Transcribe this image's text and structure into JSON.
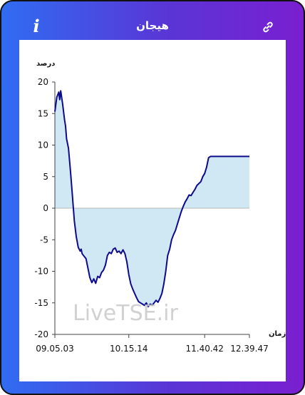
{
  "header": {
    "title": "هیجان",
    "info_label": "i",
    "info_icon": "info-icon",
    "link_icon": "link-icon"
  },
  "colors": {
    "gradient_start": "#2f6df2",
    "gradient_end": "#7a1fd0",
    "line": "#0d0a8c",
    "fill": "#cfe8f4"
  },
  "watermark": "LiveTSE.ir",
  "chart_data": {
    "type": "area",
    "xlabel": "زمان",
    "ylabel": "درصد",
    "ylim": [
      -20,
      20
    ],
    "yticks": [
      20,
      15,
      10,
      5,
      0,
      -5,
      -10,
      -15,
      -20
    ],
    "xticks": [
      "09.05.03",
      "10.15.14",
      "11.40.42",
      "12.39.47"
    ],
    "grid": false,
    "series": [
      {
        "x": [
          0,
          0.01,
          0.02,
          0.025,
          0.03,
          0.04,
          0.05,
          0.055,
          0.06,
          0.07,
          0.08,
          0.09,
          0.1,
          0.11,
          0.12,
          0.13,
          0.135,
          0.14,
          0.15,
          0.16,
          0.17,
          0.18,
          0.19,
          0.2,
          0.21,
          0.22,
          0.23,
          0.24,
          0.25,
          0.26,
          0.27,
          0.28,
          0.29,
          0.3,
          0.31,
          0.32,
          0.33,
          0.34,
          0.35,
          0.36,
          0.37,
          0.38,
          0.39,
          0.4,
          0.41,
          0.42,
          0.43,
          0.44,
          0.45,
          0.46,
          0.47,
          0.48,
          0.49,
          0.5,
          0.51,
          0.52,
          0.53,
          0.54,
          0.55,
          0.56,
          0.57,
          0.58,
          0.59,
          0.6,
          0.61,
          0.62,
          0.63,
          0.64,
          0.65,
          0.66,
          0.67,
          0.68,
          0.69,
          0.7,
          0.71,
          0.72,
          0.73,
          0.74,
          0.75,
          0.76,
          0.77,
          0.78,
          0.79,
          0.8,
          0.81,
          0.82,
          0.83,
          0.84,
          0.85,
          0.86,
          0.87,
          0.88,
          0.89,
          0.9,
          0.91,
          0.92,
          0.93,
          0.94,
          0.95,
          0.96,
          0.97,
          1.0
        ],
        "y": [
          15.3,
          17.6,
          18.4,
          17.2,
          18.6,
          16.5,
          14.0,
          13.0,
          11.0,
          9.5,
          6.0,
          2.0,
          -2.0,
          -4.5,
          -6.2,
          -6.8,
          -6.5,
          -7.2,
          -7.6,
          -8.0,
          -9.5,
          -11.0,
          -11.8,
          -11.2,
          -11.9,
          -10.8,
          -11.0,
          -10.2,
          -9.8,
          -9.0,
          -7.5,
          -7.0,
          -7.2,
          -6.5,
          -6.3,
          -7.0,
          -6.8,
          -7.2,
          -6.6,
          -7.2,
          -8.5,
          -10.5,
          -12.0,
          -12.8,
          -13.5,
          -14.2,
          -14.8,
          -15.0,
          -15.2,
          -15.4,
          -15.0,
          -15.6,
          -15.2,
          -15.4,
          -15.0,
          -14.6,
          -14.9,
          -14.3,
          -13.5,
          -12.0,
          -10.0,
          -7.5,
          -6.5,
          -5.0,
          -4.2,
          -3.5,
          -2.5,
          -1.5,
          -0.5,
          0.3,
          1.0,
          1.5,
          2.1,
          2.0,
          2.5,
          3.0,
          3.6,
          3.9,
          4.2,
          5.0,
          5.5,
          6.5,
          8.0,
          8.2,
          8.2,
          8.2,
          8.2,
          8.2,
          8.2,
          8.2,
          8.2,
          8.2,
          8.2,
          8.2,
          8.2,
          8.2,
          8.2,
          8.2,
          8.2,
          8.2,
          8.2,
          8.2
        ]
      }
    ]
  }
}
